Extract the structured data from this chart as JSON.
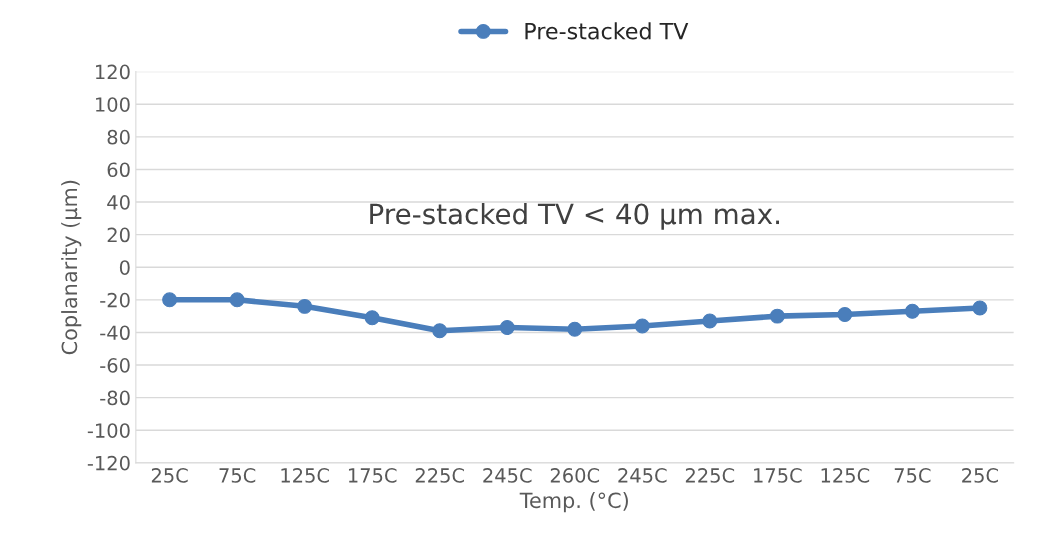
{
  "chart_data": {
    "type": "line",
    "xlabel": "Temp. (°C)",
    "ylabel": "Coplanarity (µm)",
    "categories": [
      "25C",
      "75C",
      "125C",
      "175C",
      "225C",
      "245C",
      "260C",
      "245C",
      "225C",
      "175C",
      "125C",
      "75C",
      "25C"
    ],
    "series": [
      {
        "name": "Pre-stacked TV",
        "color": "#4a7ebb",
        "values": [
          -20,
          -20,
          -24,
          -31,
          -39,
          -37,
          -38,
          -36,
          -33,
          -30,
          -29,
          -27,
          -25
        ]
      }
    ],
    "ylim": [
      -120,
      120
    ],
    "yticks": [
      -120,
      -100,
      -80,
      -60,
      -40,
      -20,
      0,
      20,
      40,
      60,
      80,
      100,
      120
    ],
    "grid": "y",
    "legend": "top",
    "marker": "circle",
    "line_style": "solid",
    "annotations": [
      "Pre-stacked TV < 40 µm max."
    ]
  }
}
